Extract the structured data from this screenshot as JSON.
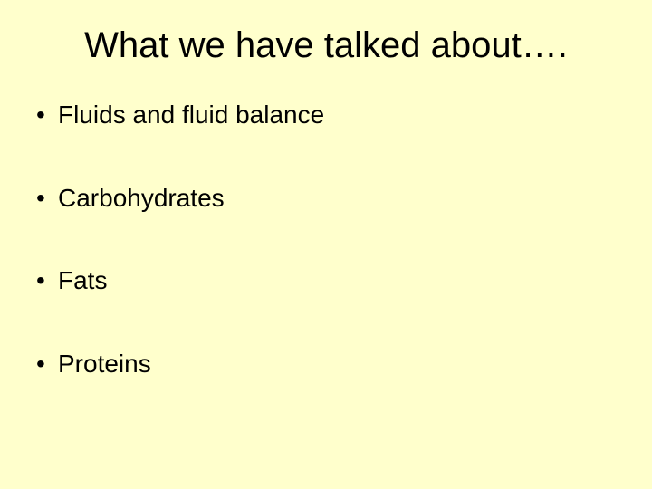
{
  "slide": {
    "title": "What we have talked about….",
    "background_color": "#ffffcc",
    "text_color": "#000000",
    "title_fontsize": 40,
    "bullet_fontsize": 28,
    "bullets": [
      {
        "text": "Fluids and fluid balance"
      },
      {
        "text": "Carbohydrates"
      },
      {
        "text": "Fats"
      },
      {
        "text": "Proteins"
      }
    ]
  }
}
